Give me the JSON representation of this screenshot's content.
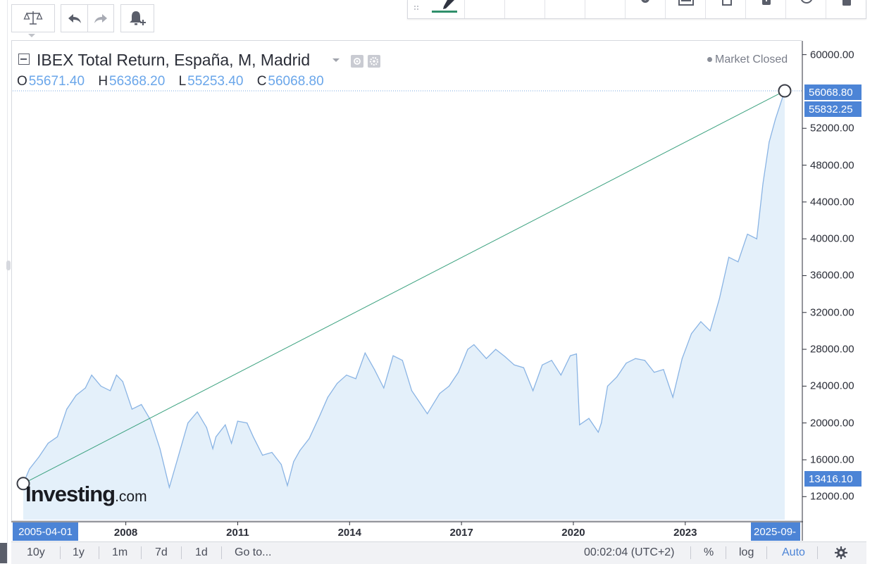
{
  "toolbar": {
    "buttons": [
      "compare-icon",
      "undo-icon",
      "redo-icon",
      "alert-icon"
    ]
  },
  "header": {
    "title": "IBEX Total Return, España, M, Madrid",
    "market_status": "Market Closed",
    "ohlc": {
      "o_key": "O",
      "o_val": "55671.40",
      "h_key": "H",
      "h_val": "56368.20",
      "l_key": "L",
      "l_val": "55253.40",
      "c_key": "C",
      "c_val": "56068.80"
    }
  },
  "price_labels": {
    "last_close": "56068.80",
    "crosshair": "55832.25",
    "start_point": "13416.10"
  },
  "x_labels": {
    "start": "2005-04-01",
    "end": "2025-09-"
  },
  "watermark": {
    "main": "Investing",
    "suffix": ".com"
  },
  "bottom_bar": {
    "ranges": [
      "10y",
      "1y",
      "1m",
      "7d",
      "1d"
    ],
    "goto": "Go to...",
    "clock": "00:02:04 (UTC+2)",
    "pct": "%",
    "log": "log",
    "auto": "Auto"
  },
  "colors": {
    "line": "#8ab4e4",
    "area": "#e4f0fa",
    "trendline": "#3aa17e",
    "label_bg": "#4c84d6",
    "accent": "#2f8f6b"
  },
  "chart_data": {
    "type": "area",
    "ylim": [
      9500,
      61500
    ],
    "yticks": [
      "12000.00",
      "16000.00",
      "20000.00",
      "24000.00",
      "28000.00",
      "32000.00",
      "36000.00",
      "40000.00",
      "44000.00",
      "48000.00",
      "52000.00",
      "60000.00"
    ],
    "xticks": [
      "2008",
      "2011",
      "2014",
      "2017",
      "2020",
      "2023"
    ],
    "trendline": {
      "from": [
        "2005-04",
        13416.1
      ],
      "to": [
        "2025-09",
        56068.8
      ]
    },
    "series": [
      {
        "x": [
          "2005-04",
          "2005-06",
          "2005-09",
          "2005-12",
          "2006-03",
          "2006-06",
          "2006-09",
          "2006-12",
          "2007-02",
          "2007-05",
          "2007-08",
          "2007-10",
          "2007-12",
          "2008-03",
          "2008-06",
          "2008-09",
          "2008-12",
          "2009-03",
          "2009-06",
          "2009-09",
          "2009-12",
          "2010-03",
          "2010-05",
          "2010-06",
          "2010-09",
          "2010-11",
          "2011-01",
          "2011-04",
          "2011-06",
          "2011-09",
          "2011-12",
          "2012-03",
          "2012-05",
          "2012-07",
          "2012-09",
          "2012-12",
          "2013-03",
          "2013-06",
          "2013-09",
          "2013-12",
          "2014-03",
          "2014-06",
          "2014-09",
          "2014-12",
          "2015-03",
          "2015-06",
          "2015-09",
          "2015-12",
          "2016-02",
          "2016-06",
          "2016-09",
          "2016-12",
          "2017-03",
          "2017-05",
          "2017-09",
          "2017-12",
          "2018-03",
          "2018-06",
          "2018-09",
          "2018-12",
          "2019-03",
          "2019-06",
          "2019-09",
          "2019-12",
          "2020-02",
          "2020-03",
          "2020-06",
          "2020-09",
          "2020-10",
          "2020-12",
          "2021-03",
          "2021-06",
          "2021-09",
          "2021-12",
          "2022-03",
          "2022-06",
          "2022-09",
          "2022-12",
          "2023-03",
          "2023-06",
          "2023-09",
          "2023-12",
          "2024-03",
          "2024-06",
          "2024-09",
          "2024-12",
          "2025-02",
          "2025-04",
          "2025-06",
          "2025-09"
        ],
        "values": [
          13416,
          15000,
          16300,
          17800,
          18500,
          21500,
          23000,
          23800,
          25200,
          24000,
          23500,
          25200,
          24500,
          21500,
          22000,
          20300,
          17200,
          13000,
          16500,
          20000,
          21200,
          19500,
          17200,
          18500,
          19800,
          17800,
          20200,
          20000,
          18500,
          16500,
          16800,
          15500,
          13200,
          15800,
          17000,
          18300,
          20500,
          22800,
          24300,
          25200,
          24800,
          27600,
          25800,
          23800,
          27300,
          26800,
          23500,
          22000,
          21000,
          23200,
          24000,
          25500,
          28000,
          28500,
          27000,
          28000,
          27200,
          26300,
          26000,
          23500,
          26300,
          26800,
          25200,
          27300,
          27500,
          19800,
          20500,
          19000,
          20000,
          24000,
          25000,
          26500,
          27000,
          26800,
          25500,
          25800,
          22800,
          27000,
          29700,
          31000,
          30000,
          33500,
          38000,
          37500,
          40500,
          40000,
          46000,
          50500,
          53000,
          56069
        ]
      }
    ]
  }
}
